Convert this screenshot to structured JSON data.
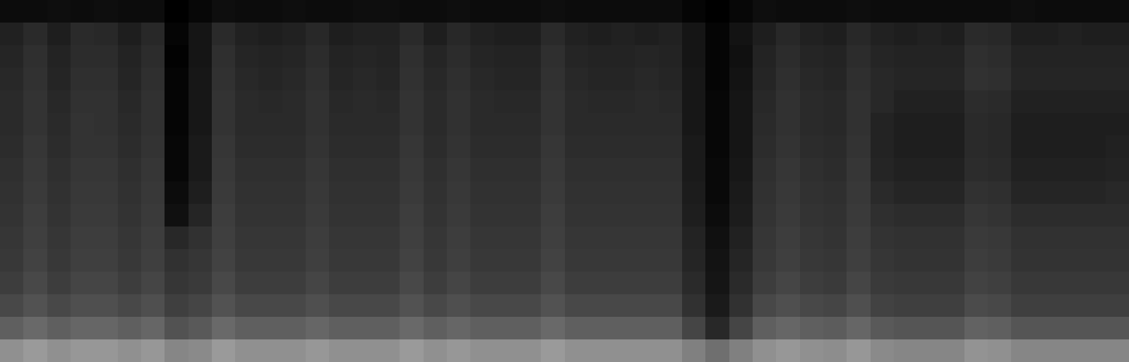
{
  "chart_data": {
    "type": "heatmap",
    "tick_labels": false,
    "grid": false,
    "cells": [
      [
        8,
        8,
        9,
        8,
        9,
        8,
        8,
        3,
        6,
        9,
        8,
        8,
        9,
        8,
        8,
        9,
        9,
        8,
        8,
        9,
        8,
        8,
        8,
        9,
        8,
        8,
        8,
        8,
        8,
        5,
        3,
        6,
        9,
        8,
        8,
        8,
        9,
        8,
        8,
        8,
        8,
        8,
        8,
        9,
        8,
        8,
        8,
        8
      ],
      [
        17,
        21,
        16,
        21,
        20,
        16,
        20,
        5,
        12,
        21,
        17,
        16,
        17,
        20,
        16,
        17,
        17,
        21,
        16,
        20,
        17,
        16,
        16,
        21,
        17,
        16,
        17,
        16,
        17,
        12,
        5,
        11,
        16,
        20,
        17,
        16,
        20,
        17,
        16,
        17,
        16,
        21,
        20,
        16,
        16,
        17,
        16,
        16
      ],
      [
        19,
        23,
        18,
        22,
        22,
        18,
        22,
        4,
        12,
        23,
        19,
        18,
        19,
        22,
        18,
        19,
        18,
        23,
        19,
        22,
        19,
        18,
        18,
        23,
        19,
        18,
        18,
        19,
        18,
        12,
        5,
        10,
        18,
        22,
        19,
        18,
        22,
        19,
        18,
        18,
        18,
        23,
        22,
        18,
        18,
        18,
        18,
        18
      ],
      [
        20,
        24,
        19,
        23,
        23,
        19,
        23,
        5,
        13,
        24,
        20,
        19,
        20,
        23,
        19,
        20,
        19,
        24,
        20,
        23,
        20,
        19,
        19,
        24,
        20,
        19,
        19,
        20,
        19,
        13,
        5,
        11,
        19,
        23,
        20,
        19,
        23,
        20,
        19,
        19,
        19,
        24,
        23,
        19,
        19,
        19,
        19,
        19
      ],
      [
        21,
        25,
        20,
        24,
        24,
        20,
        24,
        5,
        13,
        25,
        21,
        20,
        21,
        24,
        20,
        21,
        20,
        25,
        21,
        24,
        21,
        20,
        20,
        25,
        21,
        20,
        20,
        21,
        20,
        13,
        6,
        12,
        20,
        24,
        21,
        20,
        24,
        20,
        17,
        17,
        17,
        22,
        21,
        17,
        17,
        17,
        17,
        17
      ],
      [
        21,
        25,
        21,
        25,
        24,
        21,
        24,
        5,
        13,
        25,
        21,
        21,
        21,
        24,
        21,
        21,
        21,
        25,
        21,
        24,
        21,
        21,
        21,
        25,
        21,
        21,
        21,
        21,
        21,
        13,
        6,
        12,
        21,
        24,
        21,
        20,
        24,
        18,
        16,
        16,
        16,
        21,
        20,
        16,
        16,
        16,
        16,
        16
      ],
      [
        22,
        26,
        22,
        25,
        25,
        22,
        25,
        6,
        14,
        26,
        22,
        22,
        22,
        25,
        22,
        22,
        22,
        26,
        22,
        25,
        22,
        22,
        22,
        26,
        22,
        22,
        22,
        22,
        22,
        14,
        6,
        12,
        22,
        25,
        22,
        21,
        25,
        18,
        16,
        16,
        16,
        21,
        20,
        16,
        16,
        16,
        16,
        17
      ],
      [
        23,
        27,
        23,
        26,
        26,
        23,
        26,
        6,
        14,
        27,
        23,
        23,
        23,
        26,
        23,
        23,
        23,
        27,
        23,
        26,
        23,
        23,
        23,
        27,
        23,
        23,
        23,
        23,
        23,
        14,
        7,
        13,
        23,
        26,
        23,
        22,
        26,
        19,
        17,
        17,
        17,
        22,
        21,
        17,
        17,
        17,
        17,
        18
      ],
      [
        24,
        28,
        24,
        27,
        27,
        24,
        27,
        8,
        16,
        28,
        24,
        24,
        24,
        27,
        24,
        24,
        24,
        28,
        24,
        27,
        24,
        24,
        24,
        28,
        24,
        24,
        24,
        24,
        24,
        15,
        7,
        14,
        24,
        27,
        24,
        23,
        27,
        21,
        19,
        19,
        19,
        24,
        23,
        19,
        19,
        19,
        19,
        20
      ],
      [
        25,
        29,
        25,
        28,
        28,
        25,
        28,
        10,
        19,
        29,
        25,
        25,
        25,
        28,
        25,
        25,
        25,
        29,
        25,
        28,
        25,
        25,
        25,
        29,
        25,
        25,
        25,
        25,
        25,
        16,
        8,
        15,
        25,
        28,
        25,
        24,
        28,
        23,
        22,
        22,
        22,
        26,
        25,
        22,
        22,
        22,
        22,
        22
      ],
      [
        26,
        30,
        26,
        29,
        29,
        26,
        29,
        20,
        24,
        30,
        26,
        26,
        26,
        29,
        26,
        26,
        26,
        30,
        26,
        29,
        26,
        26,
        26,
        30,
        26,
        26,
        26,
        26,
        26,
        18,
        10,
        17,
        26,
        29,
        26,
        25,
        29,
        25,
        24,
        24,
        24,
        28,
        27,
        24,
        24,
        24,
        24,
        24
      ],
      [
        27,
        31,
        27,
        30,
        30,
        27,
        30,
        24,
        26,
        31,
        27,
        27,
        27,
        30,
        27,
        27,
        27,
        31,
        27,
        30,
        27,
        27,
        27,
        31,
        27,
        27,
        27,
        27,
        27,
        19,
        11,
        19,
        27,
        30,
        27,
        26,
        30,
        26,
        25,
        25,
        25,
        29,
        28,
        25,
        25,
        25,
        25,
        25
      ],
      [
        29,
        33,
        29,
        32,
        32,
        29,
        32,
        26,
        28,
        33,
        29,
        29,
        29,
        32,
        29,
        29,
        29,
        33,
        29,
        32,
        29,
        29,
        29,
        33,
        29,
        29,
        29,
        29,
        29,
        21,
        12,
        21,
        29,
        32,
        29,
        28,
        32,
        28,
        27,
        27,
        27,
        31,
        30,
        27,
        27,
        27,
        27,
        27
      ],
      [
        33,
        36,
        33,
        35,
        35,
        33,
        35,
        30,
        32,
        36,
        33,
        33,
        33,
        35,
        33,
        33,
        33,
        36,
        33,
        35,
        33,
        33,
        33,
        36,
        33,
        33,
        33,
        33,
        33,
        24,
        14,
        24,
        33,
        35,
        33,
        32,
        35,
        31,
        30,
        30,
        30,
        34,
        33,
        30,
        30,
        30,
        30,
        30
      ],
      [
        40,
        43,
        40,
        42,
        42,
        40,
        42,
        36,
        38,
        43,
        40,
        40,
        40,
        42,
        40,
        40,
        40,
        43,
        40,
        42,
        40,
        40,
        40,
        43,
        40,
        40,
        40,
        40,
        40,
        32,
        20,
        32,
        40,
        42,
        40,
        39,
        42,
        38,
        37,
        37,
        37,
        41,
        40,
        37,
        37,
        37,
        37,
        37
      ],
      [
        55,
        58,
        55,
        57,
        57,
        55,
        57,
        52,
        53,
        58,
        55,
        55,
        55,
        57,
        55,
        55,
        55,
        58,
        55,
        57,
        55,
        55,
        55,
        58,
        55,
        55,
        55,
        55,
        55,
        50,
        45,
        50,
        55,
        57,
        55,
        54,
        57,
        53,
        52,
        52,
        52,
        56,
        55,
        52,
        52,
        52,
        52,
        52
      ]
    ]
  }
}
